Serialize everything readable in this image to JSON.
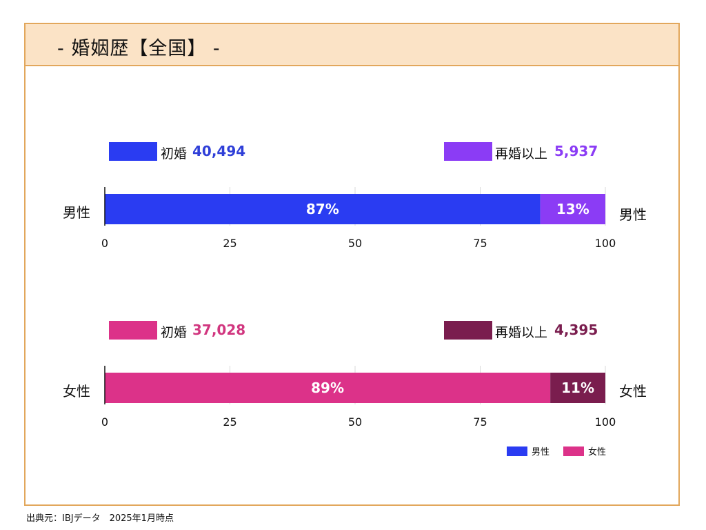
{
  "header": {
    "title": "-  婚姻歴【全国】 -"
  },
  "colors": {
    "male_first": "#2a3cf2",
    "male_remarried": "#8b3cf5",
    "female_first": "#dc3289",
    "female_remarried": "#7a1d4e",
    "header_bg": "#fbe3c6",
    "border": "#e2a75c",
    "male_value_text": "#2f3fd8",
    "female_value_text": "#d1367f"
  },
  "male": {
    "label_left": "男性",
    "label_right": "男性",
    "first_marriage": {
      "label": "初婚",
      "count": "40,494",
      "percent_label": "87%"
    },
    "remarriage": {
      "label": "再婚以上",
      "count": "5,937",
      "percent_label": "13%"
    }
  },
  "female": {
    "label_left": "女性",
    "label_right": "女性",
    "first_marriage": {
      "label": "初婚",
      "count": "37,028",
      "percent_label": "89%"
    },
    "remarriage": {
      "label": "再婚以上",
      "count": "4,395",
      "percent_label": "11%"
    }
  },
  "legend": [
    {
      "label": "男性",
      "color": "#2a3cf2"
    },
    {
      "label": "女性",
      "color": "#dc3289"
    }
  ],
  "source": "出典元：IBJデータ　2025年1月時点",
  "chart_data": {
    "type": "bar",
    "orientation": "horizontal",
    "stacked": true,
    "categories": [
      "男性",
      "女性"
    ],
    "series": [
      {
        "name": "初婚",
        "values": [
          87,
          89
        ],
        "counts": [
          "40,494",
          "37,028"
        ]
      },
      {
        "name": "再婚以上",
        "values": [
          13,
          11
        ],
        "counts": [
          "5,937",
          "4,395"
        ]
      }
    ],
    "xlim": [
      0,
      100
    ],
    "xticks": [
      0,
      25,
      50,
      75,
      100
    ],
    "grid": true,
    "legend_position": "bottom-right"
  }
}
